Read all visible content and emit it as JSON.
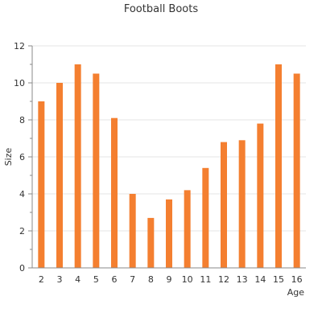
{
  "chart_data": {
    "type": "bar",
    "title": "Football Boots",
    "xlabel": "Age",
    "ylabel": "Size",
    "categories": [
      "2",
      "3",
      "4",
      "5",
      "6",
      "7",
      "8",
      "9",
      "10",
      "11",
      "12",
      "13",
      "14",
      "15",
      "16"
    ],
    "series": [
      {
        "values": [
          9,
          10,
          11,
          10.5,
          8.1,
          4,
          2.7,
          3.7,
          4.2,
          5.4,
          6.8,
          6.9,
          7.8,
          11,
          10.5
        ]
      }
    ],
    "ylim": [
      0,
      12
    ],
    "yticks": [
      "0",
      "2",
      "4",
      "6",
      "8",
      "10",
      "12"
    ],
    "grid": true,
    "legend": "none",
    "colors": {
      "bar": "#f47f30",
      "grid": "#e6e6e6",
      "axis": "#888888"
    }
  }
}
